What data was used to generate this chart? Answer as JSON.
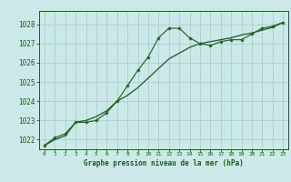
{
  "title": "Graphe pression niveau de la mer (hPa)",
  "bg_color": "#cce8e8",
  "grid_color": "#aad0d0",
  "line_color": "#1a5c1a",
  "marker_color": "#1a5c1a",
  "xlim": [
    -0.5,
    23.5
  ],
  "ylim": [
    1021.5,
    1028.7
  ],
  "xticks": [
    0,
    1,
    2,
    3,
    4,
    5,
    6,
    7,
    8,
    9,
    10,
    11,
    12,
    13,
    14,
    15,
    16,
    17,
    18,
    19,
    20,
    21,
    22,
    23
  ],
  "yticks": [
    1022,
    1023,
    1024,
    1025,
    1026,
    1027,
    1028
  ],
  "line1_x": [
    0,
    1,
    2,
    3,
    4,
    5,
    6,
    7,
    8,
    9,
    10,
    11,
    12,
    13,
    14,
    15,
    16,
    17,
    18,
    19,
    20,
    21,
    22,
    23
  ],
  "line1_y": [
    1021.7,
    1022.1,
    1022.3,
    1022.9,
    1022.9,
    1023.0,
    1023.4,
    1024.0,
    1024.8,
    1025.6,
    1026.3,
    1027.3,
    1027.8,
    1027.8,
    1027.3,
    1027.0,
    1026.9,
    1027.1,
    1027.2,
    1027.2,
    1027.5,
    1027.8,
    1027.9,
    1028.1
  ],
  "line2_x": [
    0,
    1,
    2,
    3,
    4,
    5,
    6,
    7,
    8,
    9,
    10,
    11,
    12,
    13,
    14,
    15,
    16,
    17,
    18,
    19,
    20,
    21,
    22,
    23
  ],
  "line2_y": [
    1021.7,
    1022.0,
    1022.2,
    1022.9,
    1023.0,
    1023.2,
    1023.5,
    1024.0,
    1024.3,
    1024.7,
    1025.2,
    1025.7,
    1026.2,
    1026.5,
    1026.8,
    1027.0,
    1027.1,
    1027.2,
    1027.3,
    1027.45,
    1027.55,
    1027.7,
    1027.85,
    1028.1
  ]
}
